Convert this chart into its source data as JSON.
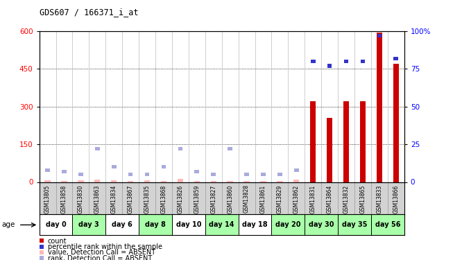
{
  "title": "GDS607 / 166371_i_at",
  "samples": [
    "GSM13805",
    "GSM13858",
    "GSM13830",
    "GSM13863",
    "GSM13834",
    "GSM13867",
    "GSM13835",
    "GSM13868",
    "GSM13826",
    "GSM13859",
    "GSM13827",
    "GSM13860",
    "GSM13828",
    "GSM13861",
    "GSM13829",
    "GSM13862",
    "GSM13831",
    "GSM13864",
    "GSM13832",
    "GSM13865",
    "GSM13833",
    "GSM13866"
  ],
  "days": [
    "day 0",
    "day 3",
    "day 6",
    "day 8",
    "day 10",
    "day 14",
    "day 18",
    "day 20",
    "day 30",
    "day 35",
    "day 56"
  ],
  "day_boundaries": [
    0,
    2,
    4,
    6,
    8,
    10,
    12,
    14,
    16,
    18,
    20,
    22
  ],
  "count_values": [
    8,
    5,
    8,
    10,
    8,
    5,
    8,
    5,
    12,
    5,
    5,
    5,
    5,
    5,
    5,
    10,
    320,
    255,
    320,
    320,
    595,
    470
  ],
  "rank_values": [
    8,
    7,
    5,
    22,
    10,
    5,
    5,
    10,
    22,
    7,
    5,
    22,
    5,
    5,
    5,
    8,
    80,
    77,
    80,
    80,
    97,
    82
  ],
  "is_absent": [
    true,
    true,
    true,
    true,
    true,
    true,
    true,
    true,
    true,
    true,
    true,
    true,
    true,
    true,
    true,
    true,
    false,
    false,
    false,
    false,
    false,
    false
  ],
  "ylim_left": [
    0,
    600
  ],
  "ylim_right": [
    0,
    100
  ],
  "yticks_left": [
    0,
    150,
    300,
    450,
    600
  ],
  "yticks_right": [
    0,
    25,
    50,
    75,
    100
  ],
  "bar_color": "#CC0000",
  "rank_color": "#3333CC",
  "absent_bar_color": "#FFB8B8",
  "absent_rank_color": "#AAAADD",
  "bg_color": "#FFFFFF",
  "sample_bg": "#D3D3D3",
  "day_colors": [
    "#FFFFFF",
    "#AAFFAA",
    "#FFFFFF",
    "#AAFFAA",
    "#FFFFFF",
    "#AAFFAA",
    "#FFFFFF",
    "#AAFFAA",
    "#AAFFAA",
    "#AAFFAA",
    "#AAFFAA"
  ],
  "legend_items": [
    "count",
    "percentile rank within the sample",
    "value, Detection Call = ABSENT",
    "rank, Detection Call = ABSENT"
  ],
  "legend_colors": [
    "#CC0000",
    "#3333CC",
    "#FFB8B8",
    "#AAAADD"
  ]
}
